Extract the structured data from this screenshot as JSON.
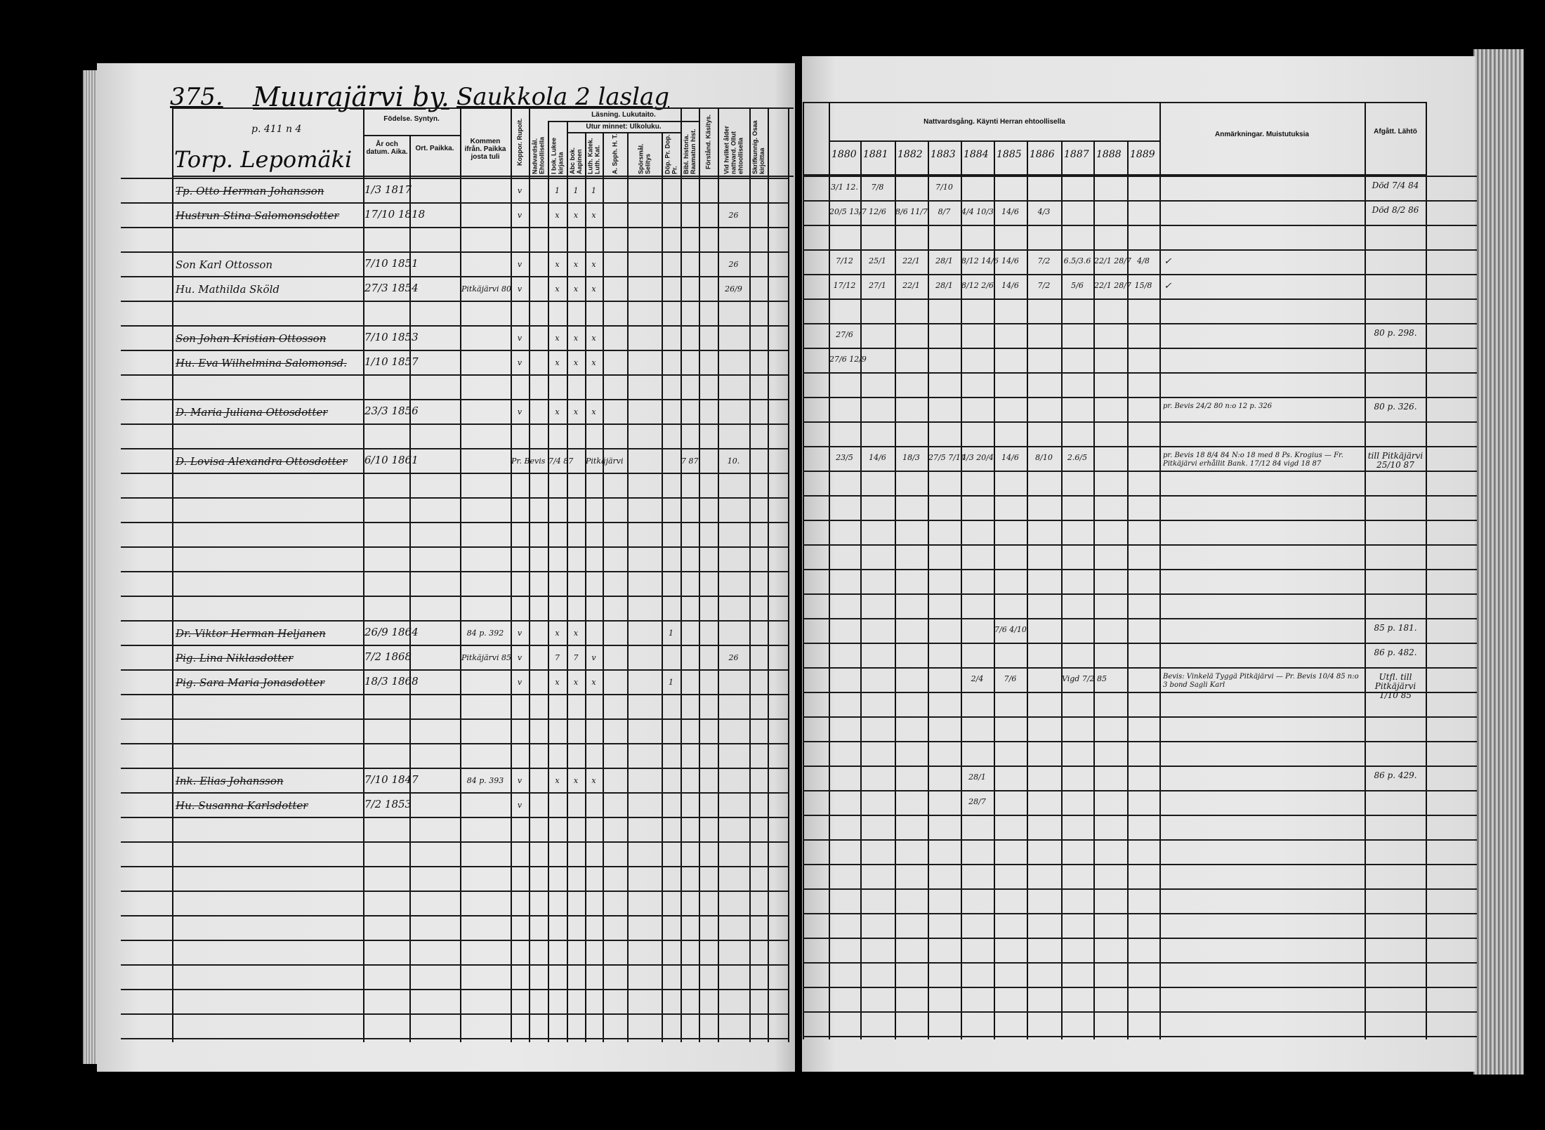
{
  "left_page": {
    "page_number": "375.",
    "village": "Muurajärvi by.",
    "farm": "Saukkola 2 laslag",
    "ref_note": "p. 411 n 4",
    "household": "Torp. Lepomäki",
    "headers": {
      "birth": "Födelse. Syntyn.",
      "year_date": "År och datum. Aika.",
      "place": "Ort. Paikka.",
      "came_from": "Kommen ifrån. Paikka josta tuli",
      "smallpox": "Koppor. Rupoit.",
      "communion_age": "Nadvardsål. Ehtoollisella",
      "reading": "Läsning. Lukutaito.",
      "by_book": "I bok. Lukee kirjasta",
      "by_heart": "Utur minnet: Ulkoluku.",
      "abc": "Abc bok. Aapinen",
      "catechism": "Luth. Katek. Luth. Kat.",
      "a_spph": "A. Spph. H. T.",
      "questions": "Spörsmål. Selitys",
      "baptism": "Döp. Pr. Dop. Pr.",
      "bible_history": "Bibl. historia. Raamatun hist.",
      "understanding": "Förstånd. Käsitys.",
      "first_communion": "Vid hvilket ålder nattvard. Ollut ehtoollisella",
      "writing": "Skrifkunnig. Osaa kirjoittaa"
    }
  },
  "right_page": {
    "headers": {
      "communion": "Nattvardsgång. Käynti Herran ehtoollisella",
      "years": [
        "1880",
        "1881",
        "1882",
        "1883",
        "1884",
        "1885",
        "1886",
        "1887",
        "1888",
        "1889"
      ],
      "remarks": "Anmärkningar. Muistutuksia",
      "departed": "Afgått. Lähtö"
    }
  },
  "rows": [
    {
      "name": "Tp. Otto Herman Johansson",
      "struck": true,
      "born": "1/3 1817",
      "marks": [
        "v",
        "",
        "1",
        "1",
        "1",
        "",
        "",
        "",
        "",
        "",
        "",
        "",
        ""
      ],
      "communion": [
        "3/1 12.",
        "7/8",
        "",
        "7/10",
        "",
        "",
        "",
        "",
        "",
        ""
      ],
      "departed": "Död 7/4 84"
    },
    {
      "name": "Hustrun Stina Salomonsdotter",
      "struck": true,
      "born": "17/10 1818",
      "marks": [
        "v",
        "",
        "x",
        "x",
        "x",
        "",
        "",
        "",
        "",
        "",
        "26",
        "",
        ""
      ],
      "communion": [
        "20/5 13/7",
        "12/6",
        "8/6 11/7",
        "8/7",
        "4/4 10/3",
        "14/6",
        "4/3",
        "",
        "",
        ""
      ],
      "departed": "Död 8/2 86"
    },
    {},
    {
      "name": "Son Karl Ottosson",
      "struck": false,
      "born": "7/10 1851",
      "marks": [
        "v",
        "",
        "x",
        "x",
        "x",
        "",
        "",
        "",
        "",
        "",
        "26",
        "",
        ""
      ],
      "communion": [
        "7/12",
        "25/1",
        "22/1",
        "28/1",
        "8/12 14/6",
        "14/6",
        "7/2",
        "6.5/3.6",
        "22/1 28/7",
        "4/8"
      ],
      "check": "✓"
    },
    {
      "name": "Hu. Mathilda Sköld",
      "struck": false,
      "born": "27/3 1854",
      "came_from": "Pitkäjärvi 80",
      "marks": [
        "v",
        "",
        "x",
        "x",
        "x",
        "",
        "",
        "",
        "",
        "",
        "26/9",
        "",
        ""
      ],
      "communion": [
        "17/12",
        "27/1",
        "22/1",
        "28/1",
        "8/12 2/6",
        "14/6",
        "7/2",
        "5/6",
        "22/1 28/7",
        "15/8"
      ],
      "check": "✓"
    },
    {},
    {
      "name": "Son Johan Kristian Ottosson",
      "struck": true,
      "born": "7/10 1853",
      "marks": [
        "v",
        "",
        "x",
        "x",
        "x",
        "",
        "",
        "",
        "",
        "",
        "",
        "",
        ""
      ],
      "communion": [
        "27/6",
        "",
        "",
        "",
        "",
        "",
        "",
        "",
        "",
        ""
      ],
      "departed": "80 p. 298."
    },
    {
      "name": "Hu. Eva Wilhelmina Salomonsd.",
      "struck": true,
      "born": "1/10 1857",
      "marks": [
        "v",
        "",
        "x",
        "x",
        "x",
        "",
        "",
        "",
        "",
        "",
        "",
        "",
        ""
      ],
      "communion": [
        "27/6 12/9",
        "",
        "",
        "",
        "",
        "",
        "",
        "",
        "",
        ""
      ]
    },
    {},
    {
      "name": "D. Maria Juliana Ottosdotter",
      "struck": true,
      "born": "23/3 1856",
      "marks": [
        "v",
        "",
        "x",
        "x",
        "x",
        "",
        "",
        "",
        "",
        "",
        "",
        "",
        ""
      ],
      "communion": [
        "",
        "",
        "",
        "",
        "",
        "",
        "",
        "",
        "",
        ""
      ],
      "remark": "pr. Bevis 24/2 80 n:o 12 p. 326",
      "departed": "80 p. 326."
    },
    {},
    {
      "name": "D. Lovisa Alexandra Ottosdotter",
      "struck": true,
      "born": "6/10 1861",
      "marks": [
        "Pr. Bevis",
        "",
        "7/4 87",
        "",
        "Pitkäjärvi",
        "",
        "",
        "",
        "7 87",
        "",
        "10.",
        "",
        ""
      ],
      "communion": [
        "23/5",
        "14/6",
        "18/3",
        "27/5 7/10",
        "4/3 20/4",
        "14/6",
        "8/10",
        "2.6/5",
        "",
        ""
      ],
      "remark": "pr. Bevis 18 8/4 84 N:o 18 med 8 Ps. Krogius — Fr. Pitkäjärvi erhållit Bank. 17/12 84 vigd 18 87",
      "departed": "till Pitkäjärvi 25/10 87"
    },
    {},
    {},
    {},
    {},
    {},
    {},
    {
      "name": "Dr. Viktor Herman Heljanen",
      "struck": true,
      "born": "26/9 1864",
      "came_from": "84 p. 392",
      "marks": [
        "v",
        "",
        "x",
        "x",
        "",
        "",
        "",
        "1",
        "",
        "",
        "",
        "",
        ""
      ],
      "communion": [
        "",
        "",
        "",
        "",
        "",
        "7/6 4/10",
        "",
        "",
        "",
        ""
      ],
      "departed": "85 p. 181."
    },
    {
      "name": "Pig. Lina Niklasdotter",
      "struck": true,
      "born": "7/2 1868",
      "came_from": "Pitkäjärvi 85",
      "marks": [
        "v",
        "",
        "7",
        "7",
        "v",
        "",
        "",
        "",
        "",
        "",
        "26",
        "",
        ""
      ],
      "communion": [
        "",
        "",
        "",
        "",
        "",
        "",
        "",
        "",
        "",
        ""
      ],
      "departed": "86 p. 482."
    },
    {
      "name": "Pig. Sara Maria Jonasdotter",
      "struck": true,
      "born": "18/3 1868",
      "marks": [
        "v",
        "",
        "x",
        "x",
        "x",
        "",
        "",
        "1",
        "",
        "",
        "",
        "",
        ""
      ],
      "communion": [
        "",
        "",
        "",
        "",
        "2/4",
        "7/6",
        "",
        "Vigd 7/2 85",
        "",
        ""
      ],
      "remark": "Bevis: Vinkelä Tyggä Pitkäjärvi — Pr. Bevis 10/4 85 n:o 3 bond Sagli Karl",
      "departed": "Utfl. till Pitkäjärvi 1/10 85"
    },
    {},
    {},
    {},
    {
      "name": "Ink. Elias Johansson",
      "struck": true,
      "born": "7/10 1847",
      "came_from": "84 p. 393",
      "marks": [
        "v",
        "",
        "x",
        "x",
        "x",
        "",
        "",
        "",
        "",
        "",
        "",
        "",
        ""
      ],
      "communion": [
        "",
        "",
        "",
        "",
        "28/1",
        "",
        "",
        "",
        "",
        ""
      ],
      "departed": "86 p. 429."
    },
    {
      "name": "Hu. Susanna Karlsdotter",
      "struck": true,
      "born": "7/2 1853",
      "marks": [
        "v",
        "",
        "",
        "",
        "",
        "",
        "",
        "",
        "",
        "",
        "",
        "",
        ""
      ],
      "communion": [
        "",
        "",
        "",
        "",
        "28/7",
        "",
        "",
        "",
        "",
        ""
      ]
    },
    {},
    {},
    {},
    {},
    {},
    {},
    {},
    {},
    {}
  ]
}
